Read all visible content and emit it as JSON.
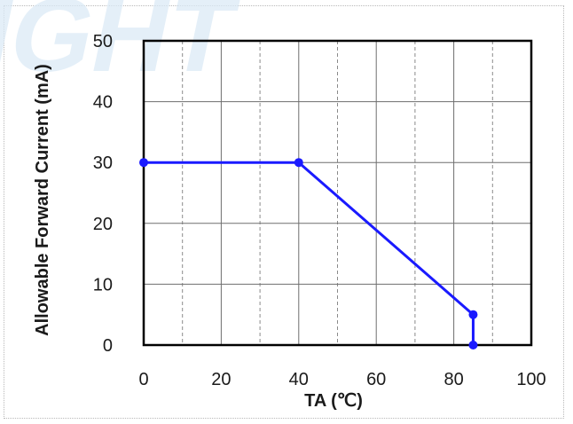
{
  "watermark": "IGHT",
  "chart_data": {
    "type": "line",
    "xlabel": "TA (℃)",
    "ylabel": "Allowable Forward Current (mA)",
    "xlim": [
      0,
      100
    ],
    "ylim": [
      0,
      50
    ],
    "x_ticks": [
      0,
      20,
      40,
      60,
      80,
      100
    ],
    "y_ticks": [
      0,
      10,
      20,
      30,
      40,
      50
    ],
    "x_tick_labels": [
      "0",
      "20",
      "40",
      "60",
      "80",
      "100"
    ],
    "y_tick_labels": [
      "0",
      "10",
      "20",
      "30",
      "40",
      "50"
    ],
    "grid": true,
    "series": [
      {
        "color": "#1a1aff",
        "points": [
          [
            0,
            30
          ],
          [
            40,
            30
          ],
          [
            85,
            5
          ],
          [
            85,
            0
          ]
        ]
      }
    ]
  }
}
